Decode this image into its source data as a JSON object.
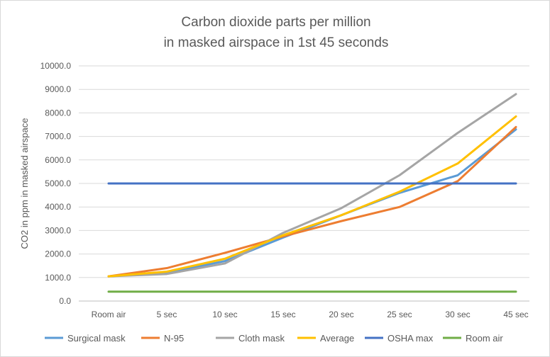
{
  "chart_data": {
    "type": "line",
    "title_line1": "Carbon dioxide parts per million",
    "title_line2": "in masked airspace in 1st 45 seconds",
    "xlabel": "",
    "ylabel": "CO2 in ppm in masked airspace",
    "ylim": [
      0,
      10000
    ],
    "yticks": [
      "0.0",
      "1000.0",
      "2000.0",
      "3000.0",
      "4000.0",
      "5000.0",
      "6000.0",
      "7000.0",
      "8000.0",
      "9000.0",
      "10000.0"
    ],
    "categories": [
      "Room air",
      "5 sec",
      "10 sec",
      "15 sec",
      "20 sec",
      "25 sec",
      "30 sec",
      "45 sec"
    ],
    "grid": true,
    "legend": "bottom",
    "series": [
      {
        "name": "Surgical mask",
        "color": "#5B9BD5",
        "values": [
          1050,
          1200,
          1700,
          2700,
          3650,
          4600,
          5350,
          7300
        ]
      },
      {
        "name": "N-95",
        "color": "#ED7D31",
        "values": [
          1050,
          1400,
          2050,
          2750,
          3400,
          4000,
          5100,
          7400
        ]
      },
      {
        "name": "Cloth mask",
        "color": "#A5A5A5",
        "values": [
          1050,
          1150,
          1600,
          2900,
          3950,
          5350,
          7150,
          8800
        ]
      },
      {
        "name": "Average",
        "color": "#FFC000",
        "values": [
          1050,
          1250,
          1800,
          2800,
          3650,
          4650,
          5850,
          7850
        ]
      },
      {
        "name": "OSHA max",
        "color": "#4472C4",
        "values": [
          5000,
          5000,
          5000,
          5000,
          5000,
          5000,
          5000,
          5000
        ]
      },
      {
        "name": "Room air",
        "color": "#70AD47",
        "values": [
          400,
          400,
          400,
          400,
          400,
          400,
          400,
          400
        ]
      }
    ]
  }
}
